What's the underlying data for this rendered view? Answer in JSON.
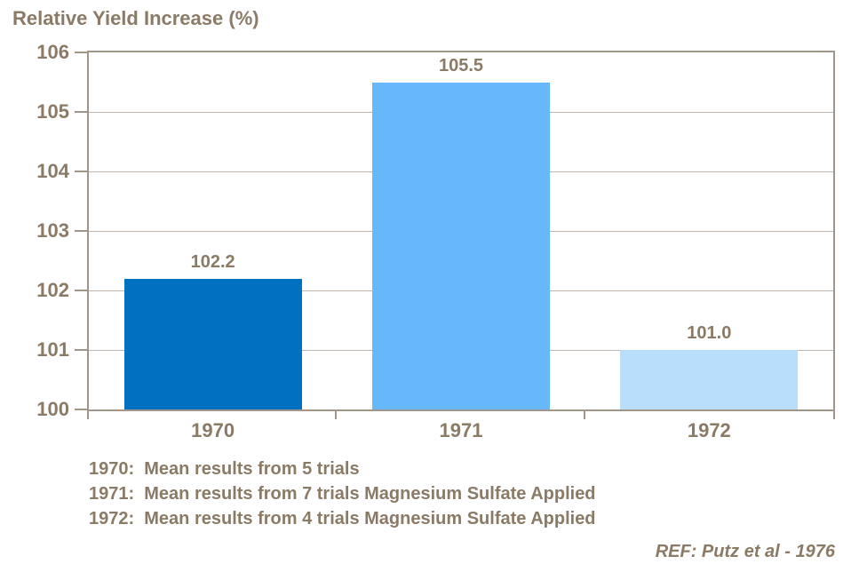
{
  "title": "Relative Yield Increase (%)",
  "chart_data": {
    "type": "bar",
    "title": "Relative Yield Increase (%)",
    "categories": [
      "1970",
      "1971",
      "1972"
    ],
    "values": [
      102.2,
      105.5,
      101.0
    ],
    "value_labels": [
      "102.2",
      "105.5",
      "101.0"
    ],
    "bar_colors": [
      "#0070c0",
      "#66b8fa",
      "#b9defb"
    ],
    "xlabel": "",
    "ylabel": "",
    "ylim": [
      100,
      106
    ],
    "yticks": [
      100,
      101,
      102,
      103,
      104,
      105,
      106
    ],
    "grid": "horizontal-on",
    "legend": "none",
    "annotations": [
      "1970:  Mean results from 5 trials",
      "1971:  Mean results from 7 trials Magnesium Sulfate Applied",
      "1972:  Mean results from 4 trials Magnesium Sulfate Applied"
    ],
    "reference": "REF: Putz et al - 1976"
  },
  "notes": {
    "lines": [
      "1970:  Mean results from 5 trials",
      "1971:  Mean results from 7 trials Magnesium Sulfate Applied",
      "1972:  Mean results from 4 trials Magnesium Sulfate Applied"
    ]
  },
  "reference": "REF: Putz et al - 1976",
  "colors": {
    "text": "#8a7a66",
    "axis_border": "#a2968a",
    "gridline": "#beb6ae",
    "background": "#ffffff",
    "bar_1970": "#0070c0",
    "bar_1971": "#66b8fa",
    "bar_1972": "#b9defb"
  }
}
